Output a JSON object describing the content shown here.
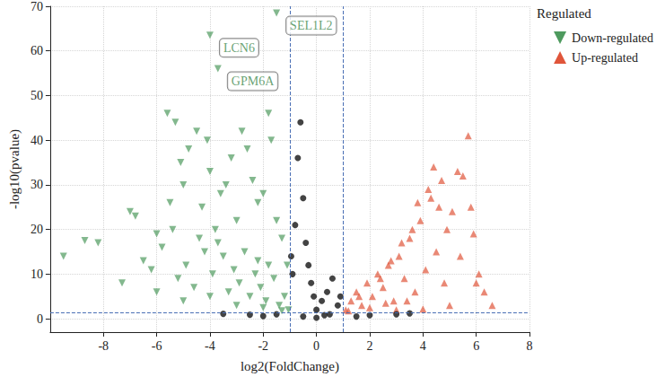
{
  "chart_data": {
    "type": "scatter",
    "xlabel": "log2(FoldChange)",
    "ylabel": "-log10(pvalue)",
    "legend_title": "Regulated",
    "legend": "right",
    "grid": true,
    "xlim": [
      -10,
      8
    ],
    "xticks": [
      -8,
      -6,
      -4,
      -2,
      0,
      2,
      4,
      6,
      8
    ],
    "ylim": [
      -3,
      70
    ],
    "yticks": [
      0,
      10,
      20,
      30,
      40,
      50,
      60,
      70
    ],
    "thresholds": {
      "x": [
        -1,
        1
      ],
      "y": 1.301
    },
    "annotations": [
      {
        "text": "SEL1L2",
        "x": -1.5,
        "y": 68.5
      },
      {
        "text": "LCN6",
        "x": -4,
        "y": 63.5
      },
      {
        "text": "GPM6A",
        "x": -3.7,
        "y": 56
      }
    ],
    "series": [
      {
        "name": "Down-regulated",
        "color": "#4e9a5e",
        "marker": "triangle-down",
        "x": [
          -1.5,
          -4,
          -3.7,
          -9.5,
          -8.7,
          -8.2,
          -7,
          -6.8,
          -6.5,
          -6,
          -5.6,
          -5.5,
          -5.3,
          -5.1,
          -5,
          -4.8,
          -4.5,
          -4.3,
          -4.1,
          -4,
          -3.8,
          -3.6,
          -3.4,
          -3.2,
          -3,
          -2.8,
          -2.6,
          -2.4,
          -2.2,
          -2,
          -1.8,
          -1.7,
          -1.5,
          -1.3,
          -1.1,
          -5.8,
          -5.2,
          -4.9,
          -4.6,
          -4.2,
          -3.9,
          -3.5,
          -3.3,
          -3.1,
          -2.9,
          -2.7,
          -2.5,
          -2.3,
          -2.1,
          -1.9,
          -1.6,
          -1.4,
          -1.2,
          -1.05,
          -6.2,
          -7.3,
          -5.4,
          -4.4,
          -3.7,
          -2.2,
          -1.8,
          -3,
          -2,
          -4,
          -5,
          -6,
          -1.3
        ],
        "values": [
          68.5,
          63.5,
          56,
          14,
          17.5,
          17,
          24,
          23,
          13,
          19,
          46,
          26,
          44,
          35,
          30,
          38,
          42,
          25,
          40,
          33,
          20,
          28,
          30,
          36,
          22,
          42,
          38,
          31,
          26,
          28,
          46,
          40,
          22,
          18,
          12,
          16,
          9,
          12,
          7,
          15,
          10,
          14,
          6,
          11,
          8,
          15,
          5,
          10,
          7,
          4,
          9,
          3,
          5,
          2,
          11,
          8,
          20,
          18,
          17,
          13,
          12,
          3,
          2.5,
          5,
          4,
          6,
          1.8
        ]
      },
      {
        "name": "Up-regulated",
        "color": "#e0553a",
        "marker": "triangle",
        "x": [
          1.1,
          1.3,
          1.5,
          1.7,
          1.9,
          2.1,
          2.3,
          2.5,
          2.7,
          2.9,
          3.1,
          3.3,
          3.5,
          3.7,
          3.9,
          4.1,
          4.3,
          4.5,
          4.7,
          4.9,
          5.1,
          5.3,
          5.5,
          5.7,
          5.9,
          6.1,
          6.3,
          6.6,
          2,
          3,
          4,
          5,
          4.6,
          4.2,
          3.8,
          3.6,
          3.2,
          2.8,
          2.4,
          1.6,
          5.4,
          5.8,
          6,
          4.8,
          3.4,
          2.6,
          1.2,
          4.4
        ],
        "values": [
          2,
          4,
          6,
          3,
          8,
          5,
          10,
          7,
          12,
          4,
          14,
          9,
          18,
          6,
          22,
          11,
          27,
          15,
          31,
          20,
          24,
          33,
          32,
          41,
          19,
          10,
          6,
          3,
          2.5,
          2,
          2.2,
          3,
          25,
          29,
          26,
          20,
          17,
          13,
          9,
          5,
          14,
          25,
          8,
          8,
          4,
          3.5,
          1.8,
          34
        ]
      },
      {
        "color": "#222222",
        "marker": "circle",
        "x": [
          -0.6,
          -0.7,
          -0.5,
          -0.8,
          -0.4,
          -0.3,
          -0.2,
          -0.1,
          0,
          0.2,
          0.4,
          0.6,
          0.8,
          -0.9,
          0.5,
          -0.5,
          0,
          0.3,
          -1.5,
          -2.5,
          -3.5,
          2,
          3,
          3.5,
          1.5,
          -2,
          0.9,
          -0.95
        ],
        "values": [
          44,
          36,
          27,
          21,
          17,
          12,
          8,
          5,
          2,
          4,
          6,
          9,
          3,
          10,
          1,
          0.5,
          0.2,
          0.8,
          1,
          0.9,
          1.1,
          0.8,
          1,
          1.2,
          0.5,
          0.6,
          5,
          14
        ]
      }
    ]
  }
}
